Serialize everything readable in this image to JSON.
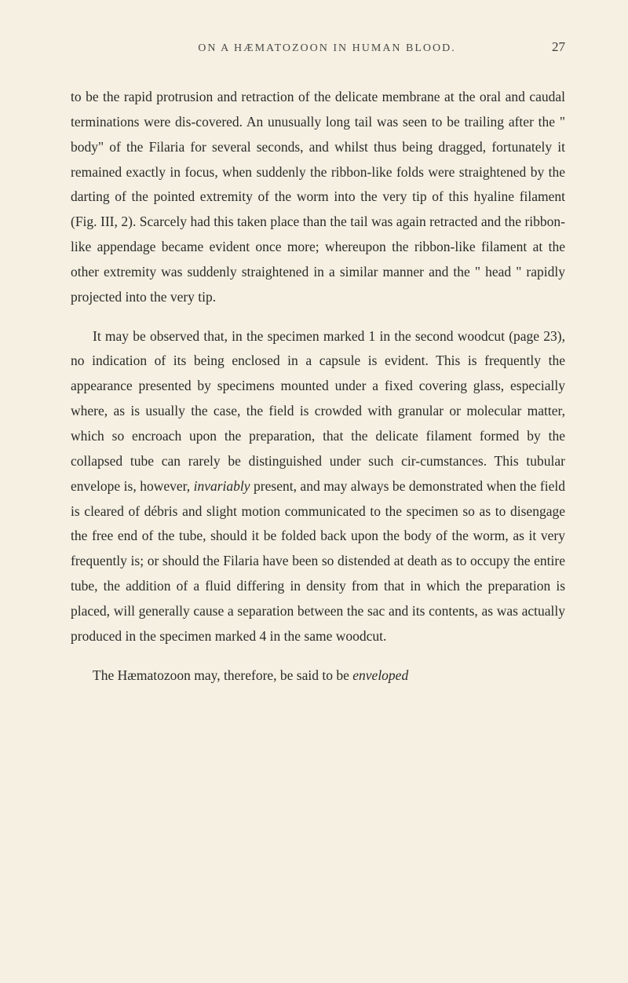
{
  "header": {
    "title": "ON A HÆMATOZOON IN HUMAN BLOOD.",
    "page_number": "27"
  },
  "paragraphs": {
    "p1": "to be the rapid protrusion and retraction of the delicate membrane at the oral and caudal terminations were dis-covered. An unusually long tail was seen to be trailing after the \" body\" of the Filaria for several seconds, and whilst thus being dragged, fortunately it remained exactly in focus, when suddenly the ribbon-like folds were straightened by the darting of the pointed extremity of the worm into the very tip of this hyaline filament (Fig. III, 2). Scarcely had this taken place than the tail was again retracted and the ribbon-like appendage became evident once more; whereupon the ribbon-like filament at the other extremity was suddenly straightened in a similar manner and the \" head \" rapidly projected into the very tip.",
    "p2_part1": "It may be observed that, in the specimen marked 1 in the second woodcut (page 23), no indication of its being enclosed in a capsule is evident. This is frequently the appearance presented by specimens mounted under a fixed covering glass, especially where, as is usually the case, the field is crowded with granular or molecular matter, which so encroach upon the preparation, that the delicate filament formed by the collapsed tube can rarely be distinguished under such cir-cumstances. This tubular envelope is, however, ",
    "p2_italic1": "invariably",
    "p2_part2": " present, and may always be demonstrated when the field is cleared of débris and slight motion communicated to the specimen so as to disengage the free end of the tube, should it be folded back upon the body of the worm, as it very frequently is; or should the Filaria have been so distended at death as to occupy the entire tube, the addition of a fluid differing in density from that in which the preparation is placed, will generally cause a separation between the sac and its contents, as was actually produced in the specimen marked 4 in the same woodcut.",
    "p3_part1": "The Hæmatozoon may, therefore, be said to be ",
    "p3_italic1": "enveloped"
  }
}
